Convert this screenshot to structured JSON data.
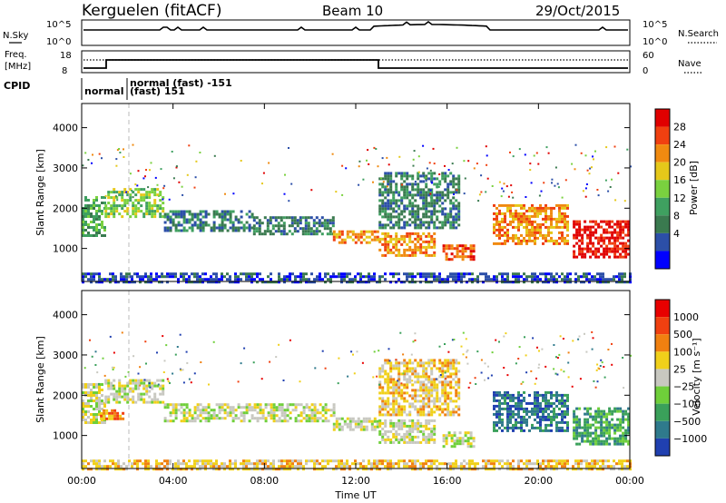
{
  "header": {
    "station": "Kerguelen (fitACF)",
    "beam": "Beam 10",
    "date": "29/Oct/2015"
  },
  "top_panels": {
    "nsky_label": "N.Sky",
    "nsearch_label": "N.Search",
    "nsky_ticks": [
      "10^5",
      "10^0"
    ],
    "nsearch_ticks": [
      "10^5",
      "10^0"
    ],
    "freq_label": [
      "Freq.",
      "[MHz]"
    ],
    "freq_ticks": [
      "18",
      "8"
    ],
    "nave_label": "Nave",
    "nave_ticks": [
      "60",
      "0"
    ],
    "cpid_label": "CPID",
    "cpid_entries": [
      "normal",
      "normal (fast) -151",
      "(fast) 151"
    ]
  },
  "colors": {
    "power": [
      "#0000ff",
      "#2c4fa8",
      "#3a7a4f",
      "#3fa060",
      "#7ad13f",
      "#e5c81a",
      "#f08a10",
      "#f04010",
      "#e00000"
    ],
    "velocity": [
      "#2040b0",
      "#2f7a8c",
      "#3aa05a",
      "#6fcf3a",
      "#c8c8c0",
      "#f0d01a",
      "#f08010",
      "#f04010",
      "#e80000"
    ]
  },
  "colorbars": {
    "power": {
      "label": "Power [dB]",
      "ticks": [
        "28",
        "24",
        "20",
        "16",
        "12",
        "8",
        "4"
      ]
    },
    "velocity": {
      "label": "Velocity [m s⁻¹]",
      "ticks": [
        "1000",
        "500",
        "100",
        "25",
        "−25",
        "−100",
        "−500",
        "−1000"
      ]
    }
  },
  "chart_data": [
    {
      "type": "heatmap",
      "panel": "power",
      "ylabel": "Slant Range [km]",
      "xlabel": "",
      "y_ticks": [
        1000,
        2000,
        3000,
        4000
      ],
      "ylim": [
        180,
        4600
      ],
      "xlim": [
        0,
        24
      ],
      "x_ticks": [
        0,
        4,
        8,
        12,
        16,
        20,
        24
      ],
      "grid": false,
      "bands": [
        {
          "t0": 0.0,
          "t1": 1.0,
          "r0": 1300,
          "r1": 2300,
          "level": 3
        },
        {
          "t0": 1.0,
          "t1": 3.6,
          "r0": 1800,
          "r1": 2500,
          "level": 4
        },
        {
          "t0": 3.6,
          "t1": 7.5,
          "r0": 1450,
          "r1": 1950,
          "level": 2
        },
        {
          "t0": 7.5,
          "t1": 11.0,
          "r0": 1350,
          "r1": 1800,
          "level": 2
        },
        {
          "t0": 11.0,
          "t1": 13.0,
          "r0": 1150,
          "r1": 1450,
          "level": 6
        },
        {
          "t0": 13.0,
          "t1": 15.5,
          "r0": 850,
          "r1": 1400,
          "level": 6
        },
        {
          "t0": 13.0,
          "t1": 16.5,
          "r0": 1500,
          "r1": 2900,
          "level": 2
        },
        {
          "t0": 15.8,
          "t1": 17.2,
          "r0": 700,
          "r1": 1100,
          "level": 7
        },
        {
          "t0": 18.0,
          "t1": 21.3,
          "r0": 1100,
          "r1": 2100,
          "level": 6
        },
        {
          "t0": 21.5,
          "t1": 24.0,
          "r0": 800,
          "r1": 1700,
          "level": 8
        },
        {
          "t0": 0.0,
          "t1": 24.0,
          "r0": 180,
          "r1": 400,
          "level": 1
        }
      ]
    },
    {
      "type": "heatmap",
      "panel": "velocity",
      "ylabel": "Slant Range [km]",
      "xlabel": "Time UT",
      "y_ticks": [
        1000,
        2000,
        3000,
        4000
      ],
      "ylim": [
        180,
        4600
      ],
      "xlim": [
        0,
        24
      ],
      "x_ticks": [
        0,
        4,
        8,
        12,
        16,
        20,
        24
      ],
      "x_tick_labels": [
        "00:00",
        "04:00",
        "08:00",
        "12:00",
        "16:00",
        "20:00",
        "00:00"
      ],
      "grid": false,
      "bands": [
        {
          "t0": 0.0,
          "t1": 1.0,
          "r0": 1300,
          "r1": 2300,
          "level": 4
        },
        {
          "t0": 1.0,
          "t1": 3.6,
          "r0": 1800,
          "r1": 2400,
          "level": 4
        },
        {
          "t0": 0.8,
          "t1": 1.8,
          "r0": 1400,
          "r1": 1650,
          "level": 6
        },
        {
          "t0": 3.6,
          "t1": 11.0,
          "r0": 1350,
          "r1": 1800,
          "level": 4
        },
        {
          "t0": 11.0,
          "t1": 13.0,
          "r0": 1150,
          "r1": 1450,
          "level": 4
        },
        {
          "t0": 13.0,
          "t1": 15.5,
          "r0": 850,
          "r1": 1400,
          "level": 4
        },
        {
          "t0": 13.0,
          "t1": 16.5,
          "r0": 1500,
          "r1": 2900,
          "level": 5
        },
        {
          "t0": 15.8,
          "t1": 17.2,
          "r0": 700,
          "r1": 1100,
          "level": 4
        },
        {
          "t0": 18.0,
          "t1": 21.3,
          "r0": 1100,
          "r1": 2100,
          "level": 1
        },
        {
          "t0": 21.5,
          "t1": 24.0,
          "r0": 800,
          "r1": 1700,
          "level": 2
        },
        {
          "t0": 0.0,
          "t1": 24.0,
          "r0": 180,
          "r1": 400,
          "level": 5
        }
      ]
    }
  ]
}
